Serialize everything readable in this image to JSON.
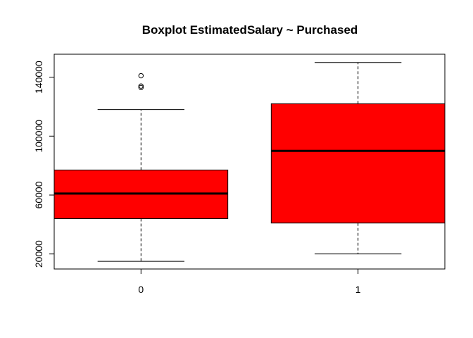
{
  "chart_data": {
    "type": "boxplot",
    "title": "Boxplot EstimatedSalary ~ Purchased",
    "xlabel": "",
    "ylabel": "",
    "categories": [
      "0",
      "1"
    ],
    "y_ticks": [
      20000,
      60000,
      100000,
      140000
    ],
    "y_tick_labels": [
      "20000",
      "60000",
      "100000",
      "140000"
    ],
    "ylim": [
      9800,
      155600
    ],
    "boxes": [
      {
        "category": "0",
        "whisker_low": 15000,
        "q1": 44000,
        "median": 61000,
        "q3": 77000,
        "whisker_high": 118000,
        "outliers": [
          133000,
          134000,
          141000
        ]
      },
      {
        "category": "1",
        "whisker_low": 20000,
        "q1": 41000,
        "median": 90000,
        "q3": 122000,
        "whisker_high": 150000,
        "outliers": []
      }
    ],
    "box_color": "#ff0000",
    "grid": false,
    "legend": "none"
  }
}
